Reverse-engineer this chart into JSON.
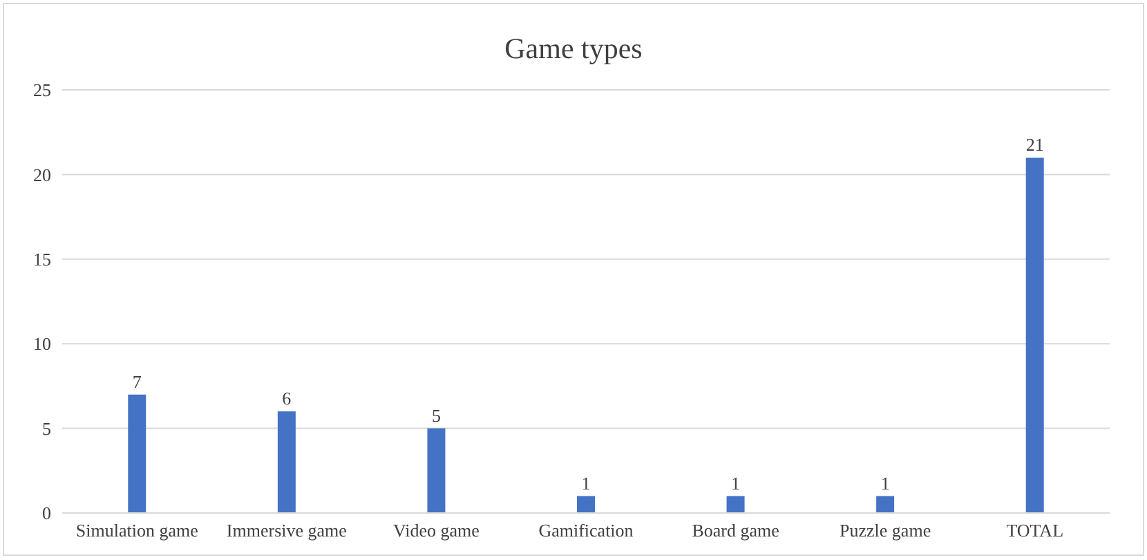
{
  "chart_data": {
    "type": "bar",
    "title": "Game types",
    "categories": [
      "Simulation game",
      "Immersive game",
      "Video game",
      "Gamification",
      "Board game",
      "Puzzle game",
      "TOTAL"
    ],
    "values": [
      7,
      6,
      5,
      1,
      1,
      1,
      21
    ],
    "color": "#4472c4",
    "ylim": [
      0,
      25
    ],
    "yticks": [
      0,
      5,
      10,
      15,
      20,
      25
    ],
    "grid": "y",
    "data_labels": true
  }
}
